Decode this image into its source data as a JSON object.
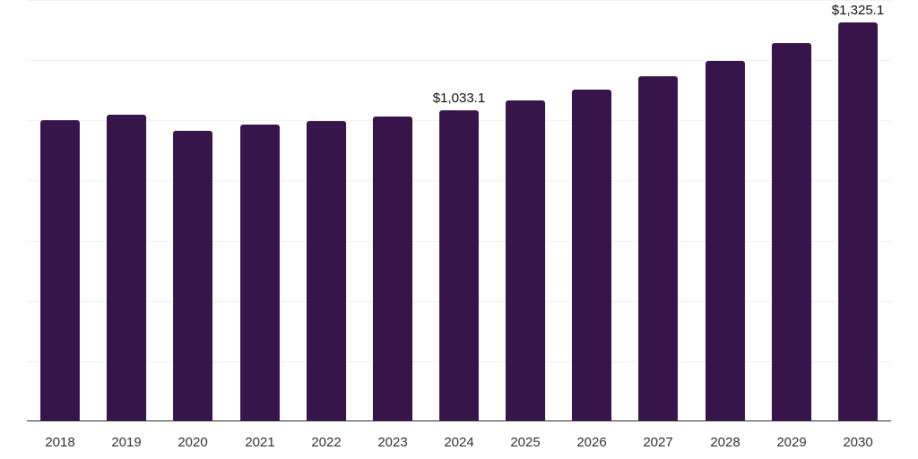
{
  "chart_data": {
    "type": "bar",
    "title": "",
    "xlabel": "",
    "ylabel": "",
    "categories": [
      "2018",
      "2019",
      "2020",
      "2021",
      "2022",
      "2023",
      "2024",
      "2025",
      "2026",
      "2027",
      "2028",
      "2029",
      "2030"
    ],
    "values": [
      1000,
      1018,
      964,
      985,
      997,
      1012,
      1033.1,
      1066,
      1102,
      1147,
      1197,
      1257,
      1325.1
    ],
    "ylim": [
      0,
      1400
    ],
    "grid": true,
    "gridlines": [
      0,
      200,
      400,
      600,
      800,
      1000,
      1200,
      1400
    ],
    "data_labels": [
      {
        "category": "2024",
        "text": "$1,033.1"
      },
      {
        "category": "2030",
        "text": "$1,325.1"
      }
    ],
    "bar_color": "#371449",
    "legend": null
  }
}
